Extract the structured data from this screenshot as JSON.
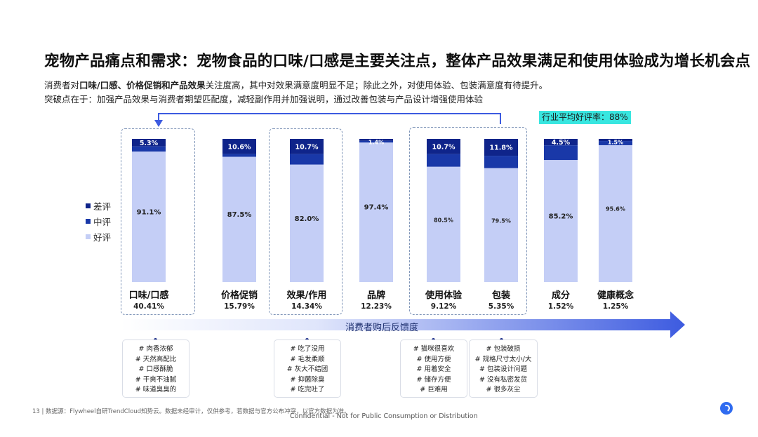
{
  "title": "宠物产品痛点和需求：宠物食品的口味/口感是主要关注点，整体产品效果满足和使用体验成为增长机会点",
  "subtitle": {
    "line1_a": "消费者对",
    "line1_b": "口味/口感、价格促销和产品效果",
    "line1_c": "关注度高，其中对效果满意度明显不足；除此之外，对使用体验、包装满意度有待提升。",
    "line2": "突破点在于：加强产品效果与消费者期望匹配度，减轻副作用并加强说明，通过改善包装与产品设计增强使用体验"
  },
  "badge": "行业平均好评率：88%",
  "colors": {
    "bad": "#0f248a",
    "mid": "#1938a8",
    "good": "#c4cef6",
    "arrow": "#3d5be0"
  },
  "chart_data": {
    "type": "bar",
    "stacked": true,
    "categories": [
      "口味/口感",
      "价格促销",
      "效果/作用",
      "品牌",
      "使用体验",
      "包装",
      "成分",
      "健康概念"
    ],
    "shares": [
      "40.41%",
      "15.79%",
      "14.34%",
      "12.23%",
      "9.12%",
      "5.35%",
      "1.52%",
      "1.25%"
    ],
    "series": [
      {
        "name": "好评",
        "values": [
          91.1,
          87.5,
          82.0,
          97.4,
          80.5,
          79.5,
          85.2,
          95.6
        ],
        "labels": [
          "91.1%",
          "87.5%",
          "82.0%",
          "97.4%",
          "80.5%",
          "79.5%",
          "85.2%",
          "95.6%"
        ]
      },
      {
        "name": "中评",
        "values": [
          3.6,
          1.9,
          7.3,
          1.2,
          8.8,
          8.7,
          10.3,
          2.9
        ],
        "labels": [
          "",
          "",
          "",
          "",
          "",
          "",
          "",
          ""
        ]
      },
      {
        "name": "差评",
        "values": [
          5.3,
          10.6,
          10.7,
          1.4,
          10.7,
          11.8,
          4.5,
          1.5
        ],
        "labels": [
          "5.3%",
          "10.6%",
          "10.7%",
          "1.4%",
          "10.7%",
          "11.8%",
          "4.5%",
          "1.5%"
        ]
      }
    ],
    "legend": [
      "差评",
      "中评",
      "好评"
    ],
    "ylim": [
      0,
      100
    ],
    "axis_label": "消费者购后反馈度"
  },
  "cards": [
    {
      "items": [
        "# 肉香浓郁",
        "# 天然高配比",
        "# 口感酥脆",
        "# 干爽不油腻",
        "# 味道臭臭的"
      ]
    },
    {
      "items": [
        "# 吃了没用",
        "# 毛发柔顺",
        "# 灰大不结团",
        "# 抑菌除臭",
        "# 吃完吐了"
      ]
    },
    {
      "items": [
        "# 猫咪很喜欢",
        "# 使用方便",
        "# 用着安全",
        "# 储存方便",
        "# 巨难用"
      ]
    },
    {
      "items": [
        "# 包装破损",
        "# 规格尺寸太小/大",
        "# 包装设计问题",
        "# 没有私密发货",
        "# 很多灰尘"
      ]
    }
  ],
  "footer": "13  |  数据源：Flywheel自研TrendCloud知势云。数据未经审计，仅供参考，若数据与官方公布冲突，以官方数据为准。",
  "confidential": "Confidential - Not for Public Consumption or Distribution"
}
